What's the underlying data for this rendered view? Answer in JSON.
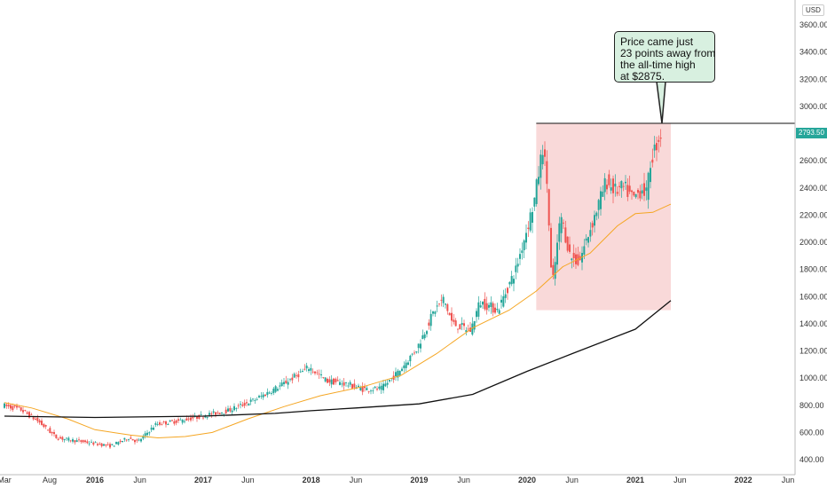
{
  "chart_data": {
    "type": "candlestick",
    "title": "",
    "xlabel": "",
    "ylabel": "",
    "currency": "USD",
    "ylim": [
      350,
      3750
    ],
    "xlim": [
      "2015-03-01",
      "2022-06-01"
    ],
    "y_ticks": [
      "400.00",
      "600.00",
      "800.00",
      "1000.00",
      "1200.00",
      "1400.00",
      "1600.00",
      "1800.00",
      "2000.00",
      "2200.00",
      "2400.00",
      "2600.00",
      "3000.00",
      "3200.00",
      "3400.00",
      "3600.00"
    ],
    "x_ticks": [
      {
        "label": "Mar",
        "date": "2015-03-01",
        "year": false
      },
      {
        "label": "Aug",
        "date": "2015-08-01",
        "year": false
      },
      {
        "label": "2016",
        "date": "2016-01-01",
        "year": true
      },
      {
        "label": "Jun",
        "date": "2016-06-01",
        "year": false
      },
      {
        "label": "2017",
        "date": "2017-01-01",
        "year": true
      },
      {
        "label": "Jun",
        "date": "2017-06-01",
        "year": false
      },
      {
        "label": "2018",
        "date": "2018-01-01",
        "year": true
      },
      {
        "label": "Jun",
        "date": "2018-06-01",
        "year": false
      },
      {
        "label": "2019",
        "date": "2019-01-01",
        "year": true
      },
      {
        "label": "Jun",
        "date": "2019-06-01",
        "year": false
      },
      {
        "label": "2020",
        "date": "2020-01-01",
        "year": true
      },
      {
        "label": "Jun",
        "date": "2020-06-01",
        "year": false
      },
      {
        "label": "2021",
        "date": "2021-01-01",
        "year": true
      },
      {
        "label": "Jun",
        "date": "2021-06-01",
        "year": false
      },
      {
        "label": "2022",
        "date": "2022-01-01",
        "year": true
      },
      {
        "label": "Jun",
        "date": "2022-06-01",
        "year": false
      }
    ],
    "last_price": "2793.50",
    "last_price_value": 2793.5,
    "all_time_high": 2875,
    "price_path": [
      [
        "2015-03-01",
        800
      ],
      [
        "2015-05-01",
        770
      ],
      [
        "2015-07-01",
        680
      ],
      [
        "2015-09-01",
        560
      ],
      [
        "2015-11-01",
        540
      ],
      [
        "2016-01-01",
        520
      ],
      [
        "2016-03-01",
        500
      ],
      [
        "2016-05-01",
        560
      ],
      [
        "2016-06-01",
        530
      ],
      [
        "2016-08-01",
        660
      ],
      [
        "2016-11-01",
        690
      ],
      [
        "2017-01-01",
        720
      ],
      [
        "2017-04-01",
        760
      ],
      [
        "2017-07-01",
        840
      ],
      [
        "2017-10-01",
        950
      ],
      [
        "2018-01-01",
        1080
      ],
      [
        "2018-03-01",
        980
      ],
      [
        "2018-05-01",
        960
      ],
      [
        "2018-07-01",
        920
      ],
      [
        "2018-09-01",
        920
      ],
      [
        "2018-11-01",
        1050
      ],
      [
        "2019-01-01",
        1220
      ],
      [
        "2019-03-01",
        1500
      ],
      [
        "2019-04-01",
        1580
      ],
      [
        "2019-05-01",
        1400
      ],
      [
        "2019-07-01",
        1350
      ],
      [
        "2019-08-01",
        1560
      ],
      [
        "2019-10-01",
        1500
      ],
      [
        "2019-12-01",
        1800
      ],
      [
        "2020-02-01",
        2300
      ],
      [
        "2020-03-01",
        2700
      ],
      [
        "2020-03-15",
        2450
      ],
      [
        "2020-04-01",
        1650
      ],
      [
        "2020-05-01",
        2200
      ],
      [
        "2020-06-01",
        1900
      ],
      [
        "2020-07-01",
        1850
      ],
      [
        "2020-08-01",
        2050
      ],
      [
        "2020-09-01",
        2250
      ],
      [
        "2020-10-01",
        2450
      ],
      [
        "2020-11-01",
        2380
      ],
      [
        "2020-12-01",
        2400
      ],
      [
        "2021-01-01",
        2320
      ],
      [
        "2021-02-01",
        2400
      ],
      [
        "2021-02-15",
        2350
      ],
      [
        "2021-03-01",
        2600
      ],
      [
        "2021-04-01",
        2793
      ]
    ],
    "series": [
      {
        "name": "",
        "color": "#f5a623",
        "points": [
          [
            "2015-03-01",
            820
          ],
          [
            "2015-06-01",
            780
          ],
          [
            "2015-10-01",
            700
          ],
          [
            "2016-01-01",
            620
          ],
          [
            "2016-05-01",
            580
          ],
          [
            "2016-08-01",
            560
          ],
          [
            "2016-11-01",
            570
          ],
          [
            "2017-02-01",
            600
          ],
          [
            "2017-06-01",
            700
          ],
          [
            "2017-10-01",
            790
          ],
          [
            "2018-02-01",
            870
          ],
          [
            "2018-07-01",
            940
          ],
          [
            "2018-11-01",
            1020
          ],
          [
            "2019-03-01",
            1180
          ],
          [
            "2019-07-01",
            1370
          ],
          [
            "2019-11-01",
            1500
          ],
          [
            "2020-02-01",
            1640
          ],
          [
            "2020-05-01",
            1820
          ],
          [
            "2020-08-01",
            1920
          ],
          [
            "2020-11-01",
            2120
          ],
          [
            "2021-01-01",
            2210
          ],
          [
            "2021-03-01",
            2220
          ],
          [
            "2021-05-01",
            2280
          ]
        ]
      },
      {
        "name": "",
        "color": "#111111",
        "points": [
          [
            "2015-03-01",
            720
          ],
          [
            "2016-01-01",
            710
          ],
          [
            "2017-01-01",
            720
          ],
          [
            "2017-09-01",
            740
          ],
          [
            "2018-01-01",
            760
          ],
          [
            "2018-06-01",
            780
          ],
          [
            "2019-01-01",
            810
          ],
          [
            "2019-07-01",
            880
          ],
          [
            "2020-01-01",
            1050
          ],
          [
            "2020-06-01",
            1180
          ],
          [
            "2021-01-01",
            1360
          ],
          [
            "2021-05-01",
            1570
          ]
        ]
      }
    ],
    "highlight_box": {
      "x": [
        "2020-02-01",
        "2021-05-01"
      ],
      "y": [
        1500,
        2875
      ],
      "color": "#f9d9d9"
    },
    "ath_line": {
      "value": 2875,
      "x_start": "2020-02-01",
      "x_end": "2022-06-01"
    },
    "annotation": {
      "lines": [
        "Price came just",
        "23 points away from",
        "the all-time high",
        "at $2875."
      ],
      "point": [
        "2021-04-01",
        2875
      ]
    }
  }
}
